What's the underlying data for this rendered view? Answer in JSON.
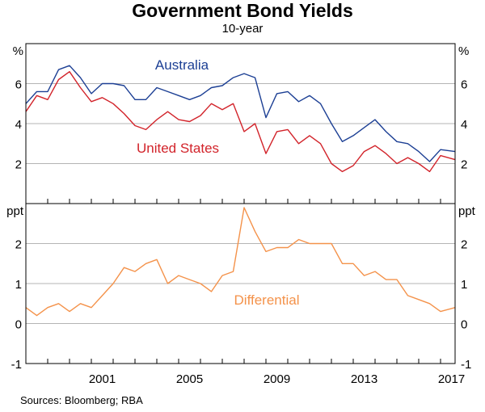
{
  "chart_data": {
    "type": "line",
    "title": "Government Bond Yields",
    "subtitle": "10-year",
    "source": "Sources: Bloomberg; RBA",
    "x_ticks": [
      "2001",
      "2005",
      "2009",
      "2013",
      "2017"
    ],
    "xlim": [
      "1998-01",
      "2017-09"
    ],
    "colors": {
      "Australia": "#1c3f94",
      "United States": "#d2232a",
      "Differential": "#f4924a"
    },
    "panels": [
      {
        "unit": "%",
        "ylim": [
          0,
          8
        ],
        "yticks": [
          2,
          4,
          6
        ],
        "gridlines": [
          2,
          4,
          6
        ],
        "series": [
          {
            "name": "Australia",
            "x": [
              "1998-01",
              "1998-07",
              "1999-01",
              "1999-07",
              "2000-01",
              "2000-07",
              "2001-01",
              "2001-07",
              "2002-01",
              "2002-07",
              "2003-01",
              "2003-07",
              "2004-01",
              "2004-07",
              "2005-01",
              "2005-07",
              "2006-01",
              "2006-07",
              "2007-01",
              "2007-07",
              "2008-01",
              "2008-07",
              "2009-01",
              "2009-07",
              "2010-01",
              "2010-07",
              "2011-01",
              "2011-07",
              "2012-01",
              "2012-07",
              "2013-01",
              "2013-07",
              "2014-01",
              "2014-07",
              "2015-01",
              "2015-07",
              "2016-01",
              "2016-07",
              "2017-01",
              "2017-09"
            ],
            "values": [
              5.0,
              5.6,
              5.6,
              6.7,
              6.9,
              6.3,
              5.5,
              6.0,
              6.0,
              5.9,
              5.2,
              5.2,
              5.8,
              5.6,
              5.4,
              5.2,
              5.4,
              5.8,
              5.9,
              6.3,
              6.5,
              6.3,
              4.3,
              5.5,
              5.6,
              5.1,
              5.4,
              5.0,
              4.0,
              3.1,
              3.4,
              3.8,
              4.2,
              3.6,
              3.1,
              3.0,
              2.6,
              2.1,
              2.7,
              2.6
            ]
          },
          {
            "name": "United States",
            "x": [
              "1998-01",
              "1998-07",
              "1999-01",
              "1999-07",
              "2000-01",
              "2000-07",
              "2001-01",
              "2001-07",
              "2002-01",
              "2002-07",
              "2003-01",
              "2003-07",
              "2004-01",
              "2004-07",
              "2005-01",
              "2005-07",
              "2006-01",
              "2006-07",
              "2007-01",
              "2007-07",
              "2008-01",
              "2008-07",
              "2009-01",
              "2009-07",
              "2010-01",
              "2010-07",
              "2011-01",
              "2011-07",
              "2012-01",
              "2012-07",
              "2013-01",
              "2013-07",
              "2014-01",
              "2014-07",
              "2015-01",
              "2015-07",
              "2016-01",
              "2016-07",
              "2017-01",
              "2017-09"
            ],
            "values": [
              4.6,
              5.4,
              5.2,
              6.2,
              6.6,
              5.8,
              5.1,
              5.3,
              5.0,
              4.5,
              3.9,
              3.7,
              4.2,
              4.6,
              4.2,
              4.1,
              4.4,
              5.0,
              4.7,
              5.0,
              3.6,
              4.0,
              2.5,
              3.6,
              3.7,
              3.0,
              3.4,
              3.0,
              2.0,
              1.6,
              1.9,
              2.6,
              2.9,
              2.5,
              2.0,
              2.3,
              2.0,
              1.6,
              2.4,
              2.2
            ]
          }
        ]
      },
      {
        "unit": "ppt",
        "ylim": [
          -1,
          3
        ],
        "yticks": [
          -1,
          0,
          1,
          2
        ],
        "gridlines": [
          0,
          1,
          2
        ],
        "series": [
          {
            "name": "Differential",
            "x": [
              "1998-01",
              "1998-07",
              "1999-01",
              "1999-07",
              "2000-01",
              "2000-07",
              "2001-01",
              "2001-07",
              "2002-01",
              "2002-07",
              "2003-01",
              "2003-07",
              "2004-01",
              "2004-07",
              "2005-01",
              "2005-07",
              "2006-01",
              "2006-07",
              "2007-01",
              "2007-07",
              "2008-01",
              "2008-07",
              "2009-01",
              "2009-07",
              "2010-01",
              "2010-07",
              "2011-01",
              "2011-07",
              "2012-01",
              "2012-07",
              "2013-01",
              "2013-07",
              "2014-01",
              "2014-07",
              "2015-01",
              "2015-07",
              "2016-01",
              "2016-07",
              "2017-01",
              "2017-09"
            ],
            "values": [
              0.4,
              0.2,
              0.4,
              0.5,
              0.3,
              0.5,
              0.4,
              0.7,
              1.0,
              1.4,
              1.3,
              1.5,
              1.6,
              1.0,
              1.2,
              1.1,
              1.0,
              0.8,
              1.2,
              1.3,
              2.9,
              2.3,
              1.8,
              1.9,
              1.9,
              2.1,
              2.0,
              2.0,
              2.0,
              1.5,
              1.5,
              1.2,
              1.3,
              1.1,
              1.1,
              0.7,
              0.6,
              0.5,
              0.3,
              0.4
            ]
          }
        ]
      }
    ]
  }
}
